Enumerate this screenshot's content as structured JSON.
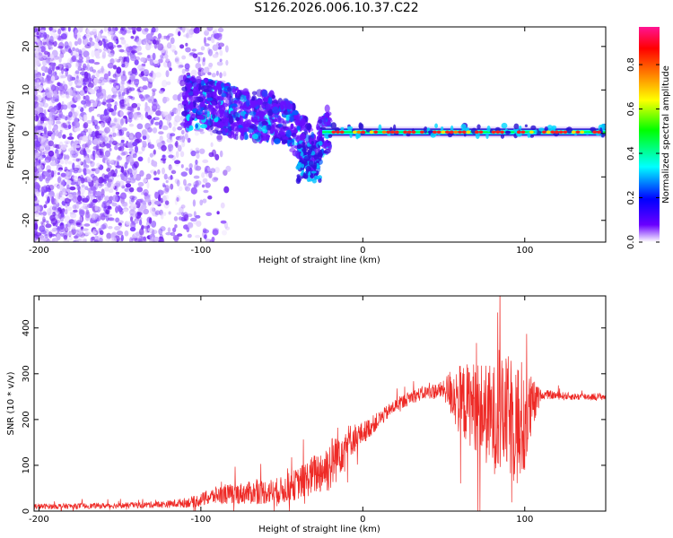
{
  "title": "S126.2026.006.10.37.C22",
  "colors": {
    "snr_line": "#ee2a26",
    "spectrum_ridge": "#00ffff",
    "colorbar": [
      "#ffffff",
      "#6a00ff",
      "#0000ff",
      "#00ffff",
      "#00ff00",
      "#ffff00",
      "#ff8000",
      "#ff0000",
      "#ff1493"
    ]
  },
  "chart_data": [
    {
      "type": "heatmap",
      "name": "radioholographic-spectrum",
      "xlabel": "Height of straight line (km)",
      "ylabel": "Frequency (Hz)",
      "xlim": [
        -203,
        150
      ],
      "ylim": [
        -25,
        24.5
      ],
      "xticks": [
        -200,
        -100,
        0,
        100
      ],
      "yticks": [
        -20,
        -10,
        0,
        10,
        20
      ],
      "colorbar": {
        "label": "Normalized spectral amplitude",
        "range": [
          0.0,
          0.97
        ],
        "ticks": [
          0.0,
          0.2,
          0.4,
          0.6,
          0.8
        ]
      },
      "ridge": {
        "x": [
          -110,
          -100,
          -90,
          -80,
          -70,
          -60,
          -50,
          -45,
          -40,
          -35,
          -30,
          -25,
          -20,
          -10,
          0,
          10,
          20,
          40,
          60,
          80,
          90,
          100,
          120,
          150
        ],
        "y": [
          7,
          7,
          6,
          5,
          4,
          4,
          3,
          2,
          0,
          -2,
          -6,
          0,
          1,
          1,
          1,
          0.5,
          0.5,
          0.3,
          0.3,
          0.3,
          0.5,
          0.3,
          0.3,
          0.3
        ]
      }
    },
    {
      "type": "line",
      "name": "snr-profile",
      "xlabel": "Height of straight line (km)",
      "ylabel": "SNR (10 * v/v)",
      "xlim": [
        -203,
        150
      ],
      "ylim": [
        0,
        470
      ],
      "xticks": [
        -200,
        -100,
        0,
        100
      ],
      "yticks": [
        0,
        100,
        200,
        300,
        400
      ],
      "series": [
        {
          "name": "SNR",
          "envelope": {
            "x": [
              -203,
              -150,
              -120,
              -105,
              -90,
              -70,
              -50,
              -40,
              -30,
              -20,
              -15,
              -10,
              0,
              10,
              20,
              30,
              40,
              50,
              55,
              60,
              70,
              80,
              90,
              95,
              100,
              105,
              110,
              130,
              150
            ],
            "y": [
              10,
              12,
              15,
              20,
              35,
              40,
              45,
              60,
              80,
              100,
              130,
              150,
              170,
              200,
              230,
              250,
              260,
              265,
              260,
              240,
              230,
              200,
              210,
              190,
              200,
              230,
              255,
              250,
              250
            ],
            "amp": [
              6,
              6,
              8,
              12,
              20,
              25,
              30,
              35,
              45,
              60,
              60,
              40,
              25,
              18,
              15,
              15,
              15,
              20,
              60,
              80,
              100,
              120,
              130,
              150,
              130,
              60,
              10,
              8,
              8
            ]
          }
        }
      ]
    }
  ]
}
